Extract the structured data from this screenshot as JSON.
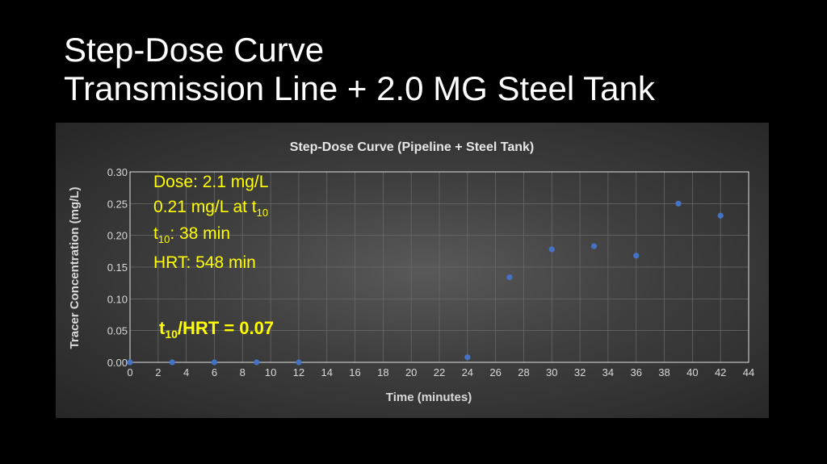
{
  "slide": {
    "title_line1": "Step-Dose Curve",
    "title_line2": "Transmission Line + 2.0 MG Steel Tank"
  },
  "chart_data": {
    "type": "scatter",
    "title": "Step-Dose Curve (Pipeline + Steel Tank)",
    "xlabel": "Time (minutes)",
    "ylabel": "Tracer Concentration (mg/L)",
    "xlim": [
      0,
      44
    ],
    "ylim": [
      0,
      0.3
    ],
    "x_ticks": [
      0,
      2,
      4,
      6,
      8,
      10,
      12,
      14,
      16,
      18,
      20,
      22,
      24,
      26,
      28,
      30,
      32,
      34,
      36,
      38,
      40,
      42,
      44
    ],
    "y_ticks": [
      "0.00",
      "0.05",
      "0.10",
      "0.15",
      "0.20",
      "0.25",
      "0.30"
    ],
    "grid": true,
    "marker_color": "#4472c4",
    "series": [
      {
        "x": [
          0,
          3,
          6,
          9,
          12,
          24,
          27,
          30,
          33,
          36,
          39,
          42
        ],
        "y": [
          0.0,
          0.0,
          0.0,
          0.0,
          0.0,
          0.008,
          0.134,
          0.178,
          0.183,
          0.168,
          0.25,
          0.231
        ]
      }
    ],
    "annotations": {
      "dose": "Dose: 2.1 mg/L",
      "conc_at_t10_prefix": "0.21 mg/L at t",
      "conc_at_t10_sub": "10",
      "t10_prefix": "t",
      "t10_sub": "10",
      "t10_suffix": ": 38 min",
      "hrt": "HRT: 548 min",
      "ratio_prefix": "t",
      "ratio_sub": "10",
      "ratio_suffix": "/HRT = 0.07"
    },
    "annotation_color": "#ffff00"
  }
}
